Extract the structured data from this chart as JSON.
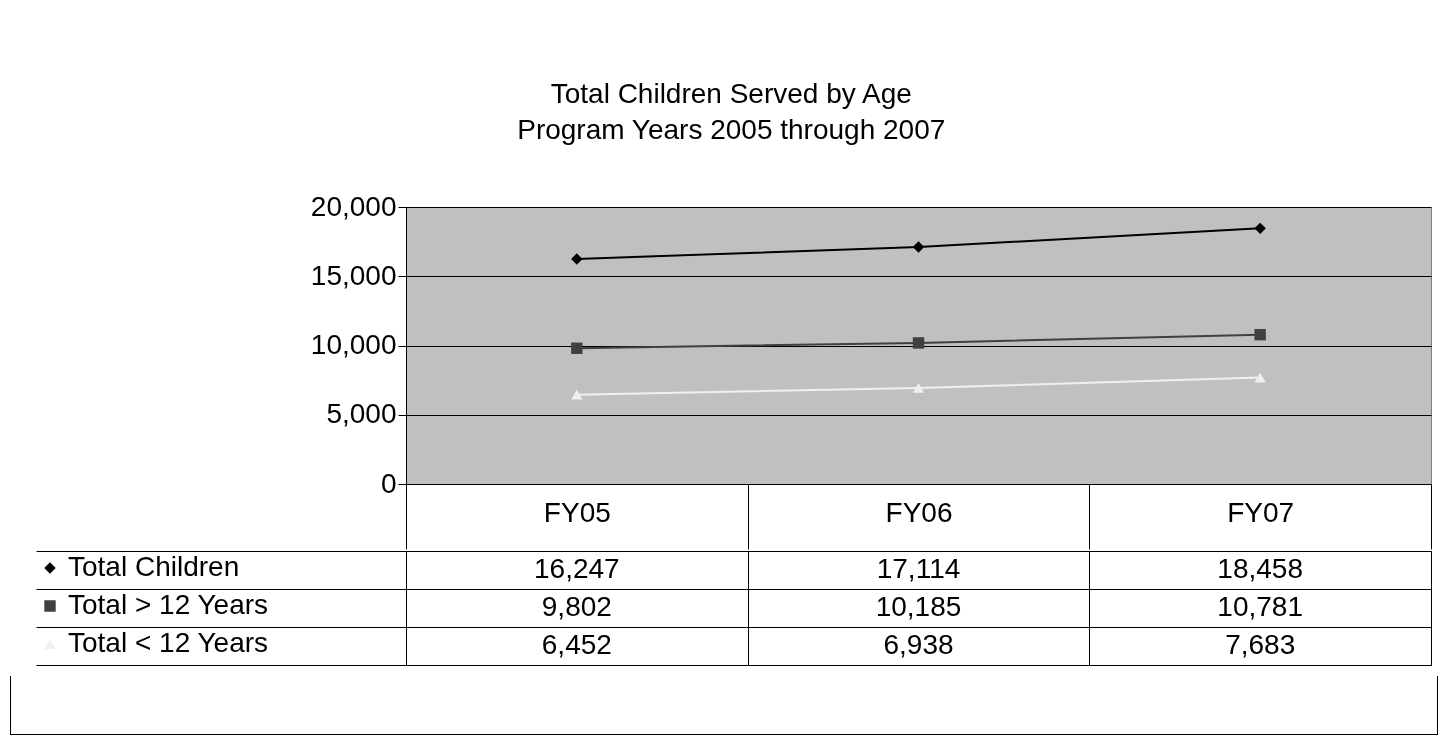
{
  "chart_data": {
    "type": "line",
    "title": "Total Children Served by Age",
    "subtitle": "Program Years 2005 through 2007",
    "categories": [
      "FY05",
      "FY06",
      "FY07"
    ],
    "series": [
      {
        "name": "Total Children",
        "color": "#000000",
        "marker": "diamond",
        "values": [
          16247,
          17114,
          18458
        ],
        "value_labels": [
          "16,247",
          "17,114",
          "18,458"
        ]
      },
      {
        "name": "Total > 12 Years",
        "color": "#404040",
        "marker": "square",
        "values": [
          9802,
          10185,
          10781
        ],
        "value_labels": [
          "9,802",
          "10,185",
          "10,781"
        ]
      },
      {
        "name": "Total < 12 Years",
        "color": "#f0f0f0",
        "marker": "triangle",
        "values": [
          6452,
          6938,
          7683
        ],
        "value_labels": [
          "6,452",
          "6,938",
          "7,683"
        ]
      }
    ],
    "ylim": [
      0,
      20000
    ],
    "yticks": [
      0,
      {
        "value": 5000,
        "label": "5,000"
      },
      {
        "value": 10000,
        "label": "10,000"
      },
      {
        "value": 15000,
        "label": "15,000"
      },
      {
        "value": 20000,
        "label": "20,000"
      }
    ],
    "grid": "y",
    "legend": "bottom left"
  }
}
